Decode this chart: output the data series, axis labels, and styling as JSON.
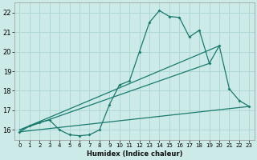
{
  "background_color": "#cceae7",
  "grid_color": "#afd8d4",
  "line_color": "#1a7a6e",
  "xlabel": "Humidex (Indice chaleur)",
  "xlim": [
    -0.5,
    23.5
  ],
  "ylim": [
    15.5,
    22.5
  ],
  "xticks": [
    0,
    1,
    2,
    3,
    4,
    5,
    6,
    7,
    8,
    9,
    10,
    11,
    12,
    13,
    14,
    15,
    16,
    17,
    18,
    19,
    20,
    21,
    22,
    23
  ],
  "yticks": [
    16,
    17,
    18,
    19,
    20,
    21,
    22
  ],
  "series1_x": [
    0,
    1,
    2,
    3,
    4,
    5,
    6,
    7,
    8,
    9,
    10,
    11,
    12,
    13,
    14,
    15,
    16,
    17,
    18,
    19,
    20,
    21,
    22,
    23
  ],
  "series1_y": [
    15.9,
    16.2,
    16.4,
    16.5,
    16.0,
    15.75,
    15.7,
    15.75,
    16.0,
    17.3,
    18.3,
    18.5,
    20.0,
    21.5,
    22.1,
    21.8,
    21.75,
    20.75,
    21.1,
    19.4,
    20.3,
    18.1,
    17.5,
    17.2
  ],
  "line1_x": [
    0,
    23
  ],
  "line1_y": [
    15.9,
    17.2
  ],
  "line2_x": [
    0,
    19
  ],
  "line2_y": [
    16.0,
    19.4
  ],
  "line3_x": [
    0,
    20
  ],
  "line3_y": [
    16.0,
    20.3
  ]
}
